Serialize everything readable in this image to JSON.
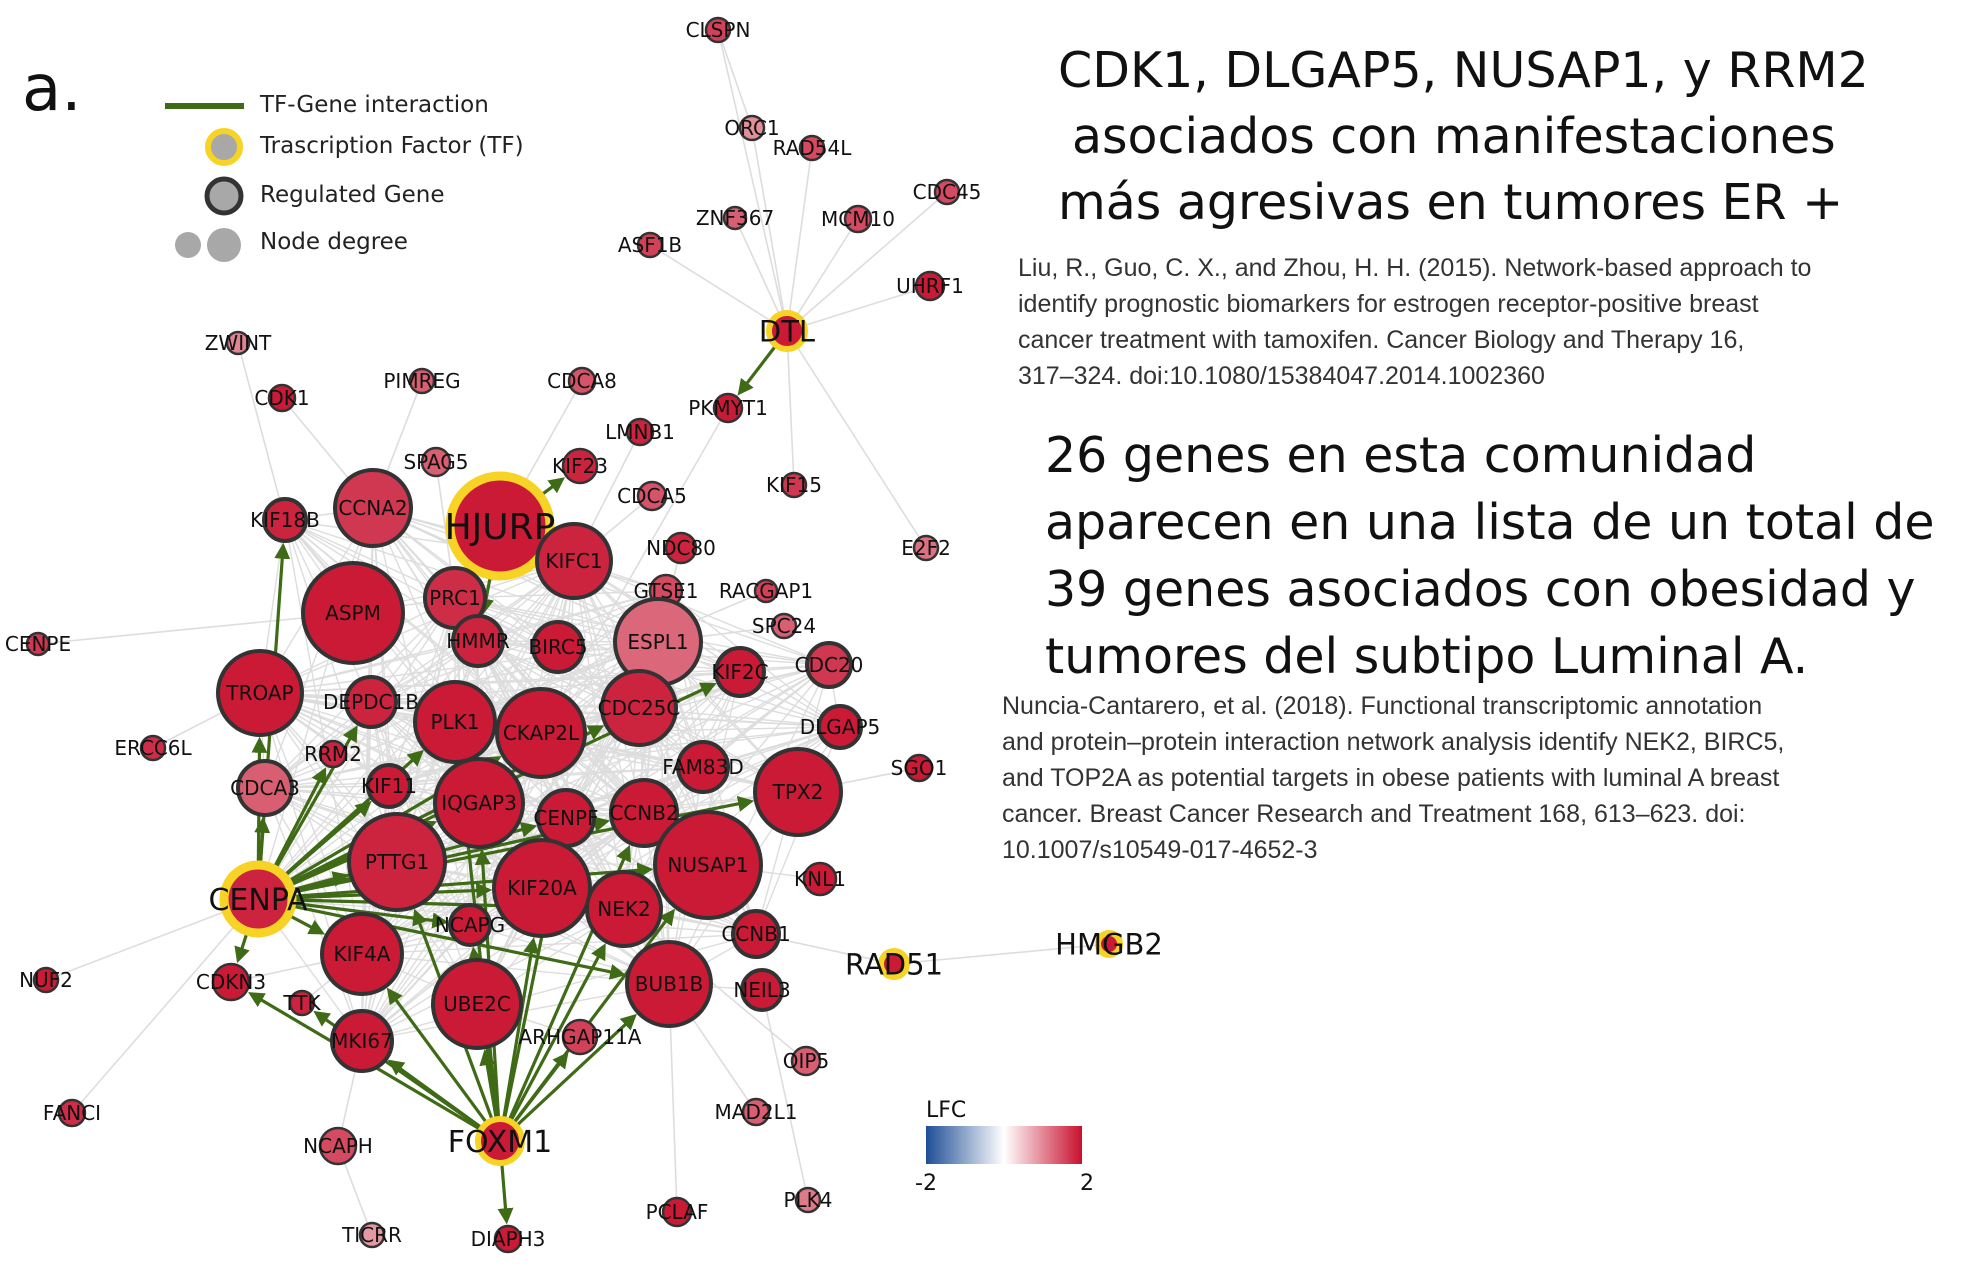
{
  "panel_letter": "a.",
  "legend": {
    "tf_gene_interaction": "TF-Gene interaction",
    "transcription_factor": "Trascription Factor (TF)",
    "regulated_gene": "Regulated Gene",
    "node_degree": "Node degree"
  },
  "lfc_scale": {
    "title": "LFC",
    "min_label": "-2",
    "max_label": "2",
    "colors": [
      "#1f4e96",
      "#ffffff",
      "#c8102e"
    ]
  },
  "colors": {
    "edge": "#dddddd",
    "tf_edge": "#3f6b16",
    "tf_ring": "#f7d325",
    "gene_ring": "#333333",
    "node_fill": "#c8102e"
  },
  "text_block_1": {
    "lines": [
      "CDK1, DLGAP5, NUSAP1, y RRM2",
      "asociados con manifestaciones",
      "más agresivas en tumores ER +"
    ]
  },
  "citation_1": {
    "lines": [
      "Liu, R., Guo, C. X., and Zhou, H. H. (2015). Network-based approach to",
      "identify prognostic biomarkers for estrogen receptor-positive breast",
      "cancer treatment with tamoxifen. Cancer Biology and Therapy 16,",
      "317–324. doi:10.1080/15384047.2014.1002360"
    ]
  },
  "text_block_2": {
    "lines": [
      "26 genes en esta comunidad",
      "aparecen en una lista de un total de",
      "39 genes asociados con obesidad y",
      "tumores del subtipo Luminal A."
    ]
  },
  "citation_2": {
    "lines": [
      "Nuncia-Cantarero, et al. (2018). Functional transcriptomic annotation",
      "and protein–protein interaction network analysis identify NEK2, BIRC5,",
      "and TOP2A as potential targets in obese patients with luminal A breast",
      "cancer. Breast Cancer Research and Treatment 168, 613–623. doi:",
      "10.1007/s10549-017-4652-3"
    ]
  },
  "network": {
    "tfs": [
      "HJURP",
      "CENPA",
      "FOXM1",
      "DTL",
      "RAD51",
      "HMGB2"
    ],
    "genes": [
      "CLSPN",
      "ORC1",
      "RAD54L",
      "CDC45",
      "ZNF367",
      "MCM10",
      "ASF1B",
      "UHRF1",
      "ZWINT",
      "CDK1",
      "PIMREG",
      "CDCA8",
      "PKMYT1",
      "LMNB1",
      "SPAG5",
      "KIF23",
      "CDCA5",
      "KIF15",
      "KIF18B",
      "CCNA2",
      "NDC80",
      "E2F2",
      "KIFC1",
      "PRC1",
      "GTSE1",
      "RACGAP1",
      "ASPM",
      "ESPL1",
      "SPC24",
      "CENPE",
      "HMMR",
      "BIRC5",
      "KIF2C",
      "CDC20",
      "TROAP",
      "DEPDC1B",
      "PLK1",
      "CKAP2L",
      "CDC25C",
      "DLGAP5",
      "ERCC6L",
      "RRM2",
      "FAM83D",
      "SGO1",
      "CDCA3",
      "KIF11",
      "IQGAP3",
      "CENPF",
      "CCNB2",
      "TPX2",
      "PTTG1",
      "KIF20A",
      "NUSAP1",
      "KNL1",
      "NCAPG",
      "NEK2",
      "CCNB1",
      "NUF2",
      "CDKN3",
      "KIF4A",
      "UBE2C",
      "BUB1B",
      "NEIL3",
      "TTK",
      "MKI67",
      "ARHGAP11A",
      "OIP5",
      "FANCI",
      "MAD2L1",
      "NCAPH",
      "TICRR",
      "DIAPH3",
      "PCLAF",
      "PLK4"
    ]
  }
}
